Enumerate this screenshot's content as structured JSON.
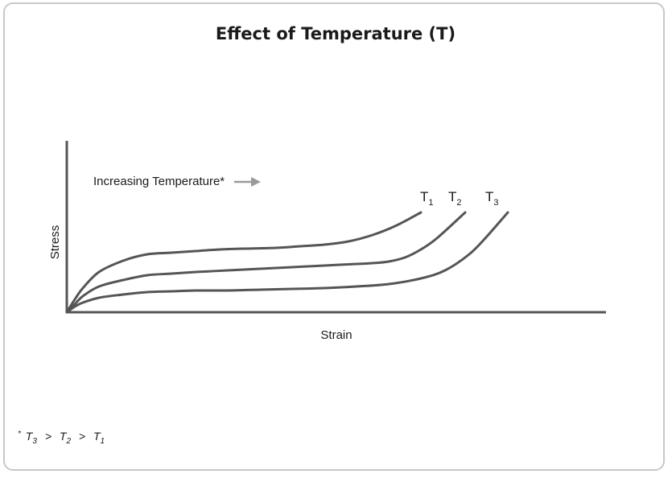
{
  "chart_data": {
    "type": "line",
    "title": "Effect of Temperature (T)",
    "xlabel": "Strain",
    "ylabel": "Stress",
    "grid": false,
    "legend": "none",
    "annotation": "Increasing Temperature*",
    "footnote": {
      "star": "*",
      "t3": "T",
      "t3_sub": "3",
      "gt1": ">",
      "t2": "T",
      "t2_sub": "2",
      "gt2": ">",
      "t1": "T",
      "t1_sub": "1"
    },
    "series": [
      {
        "name": "T1",
        "label_main": "T",
        "label_sub": "1",
        "x": [
          0,
          10,
          20,
          40,
          70,
          100,
          130,
          160,
          190,
          220,
          260,
          290,
          320,
          350,
          380,
          410,
          440
        ],
        "y": [
          0,
          16,
          30,
          50,
          64,
          72,
          74,
          76,
          78,
          79,
          80,
          82,
          84,
          88,
          96,
          108,
          124
        ]
      },
      {
        "name": "T2",
        "label_main": "T",
        "label_sub": "2",
        "x": [
          0,
          10,
          20,
          40,
          70,
          100,
          130,
          160,
          200,
          240,
          280,
          320,
          360,
          380,
          400,
          420,
          440,
          460,
          495
        ],
        "y": [
          0,
          10,
          20,
          32,
          40,
          46,
          48,
          50,
          52,
          54,
          56,
          58,
          60,
          61,
          63,
          68,
          78,
          92,
          124
        ]
      },
      {
        "name": "T3",
        "label_main": "T",
        "label_sub": "3",
        "x": [
          0,
          10,
          20,
          40,
          70,
          100,
          130,
          160,
          200,
          240,
          280,
          320,
          360,
          400,
          440,
          470,
          500,
          520,
          548
        ],
        "y": [
          0,
          7,
          12,
          18,
          22,
          25,
          26,
          27,
          27,
          28,
          29,
          30,
          32,
          35,
          42,
          52,
          72,
          92,
          124
        ]
      }
    ],
    "xlim": [
      0,
      670
    ],
    "ylim": [
      0,
      212
    ],
    "colors": {
      "curve": "#555555",
      "axis": "#555555",
      "arrow": "#9a9a9a"
    }
  }
}
